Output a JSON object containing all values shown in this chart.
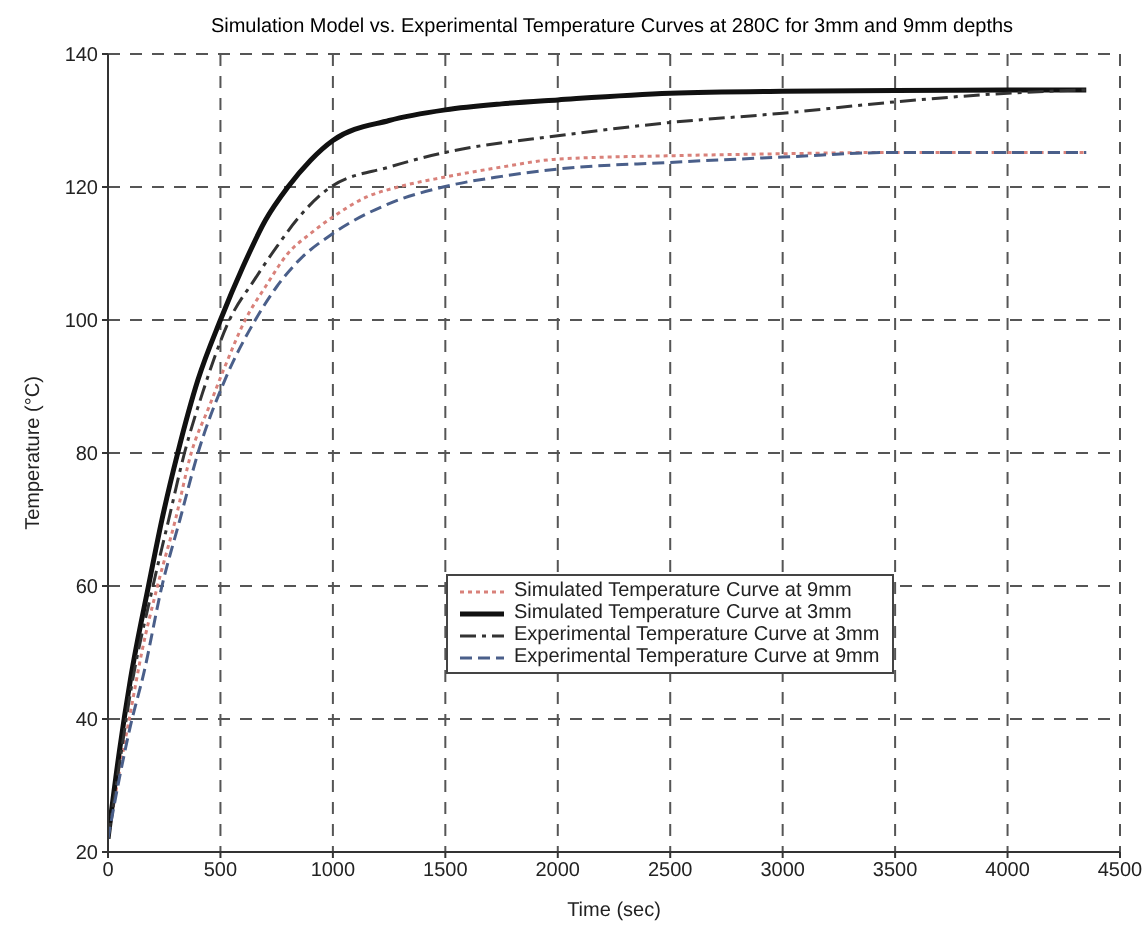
{
  "chart_data": {
    "type": "line",
    "title": "Simulation Model vs. Experimental Temperature Curves at 280C for 3mm and 9mm depths",
    "xlabel": "Time (sec)",
    "ylabel": "Temperature (°C)",
    "xlim": [
      0,
      4500
    ],
    "ylim": [
      20,
      140
    ],
    "xticks": [
      0,
      500,
      1000,
      1500,
      2000,
      2500,
      3000,
      3500,
      4000,
      4500
    ],
    "yticks": [
      20,
      40,
      60,
      80,
      100,
      120,
      140
    ],
    "grid": true,
    "legend": "center",
    "marker": "none",
    "series": [
      {
        "name": "Simulated Temperature Curve at 9mm",
        "color": "#d9817a",
        "line_style": "dotted",
        "x": [
          0,
          50,
          100,
          150,
          220,
          300,
          370,
          450,
          520,
          610,
          700,
          800,
          900,
          1000,
          1150,
          1290,
          1500,
          1750,
          2000,
          2500,
          3000,
          3500,
          4000,
          4350
        ],
        "values": [
          22,
          32,
          41,
          50,
          60,
          70,
          80,
          87,
          93,
          100,
          105,
          110,
          113,
          115.5,
          118.5,
          120,
          121.5,
          123,
          124.2,
          124.7,
          125,
          125.2,
          125.2,
          125.2
        ]
      },
      {
        "name": "Simulated Temperature Curve at 3mm",
        "color": "#111111",
        "line_style": "solid",
        "x": [
          0,
          50,
          100,
          180,
          240,
          310,
          400,
          500,
          600,
          700,
          800,
          900,
          1000,
          1250,
          1500,
          1750,
          2000,
          2500,
          3000,
          3500,
          4000,
          4350
        ],
        "values": [
          22,
          35,
          46,
          60,
          70,
          80,
          91,
          100,
          108,
          115,
          120,
          124,
          127,
          130,
          131.6,
          132.5,
          133.1,
          134.1,
          134.4,
          134.5,
          134.6,
          134.6
        ]
      },
      {
        "name": "Experimental Temperature Curve at 3mm",
        "color": "#333333",
        "line_style": "dashdot",
        "x": [
          0,
          50,
          100,
          200,
          270,
          340,
          420,
          540,
          650,
          750,
          850,
          990,
          1250,
          1500,
          2000,
          2500,
          3000,
          3500,
          4000,
          4350
        ],
        "values": [
          22,
          33,
          44,
          60,
          70,
          80,
          89,
          100,
          106,
          111,
          115.5,
          120,
          123,
          125.2,
          127.7,
          129.7,
          131.1,
          132.8,
          134.1,
          134.6
        ]
      },
      {
        "name": "Experimental Temperature Curve at 9mm",
        "color": "#4a5f8a",
        "line_style": "dashed",
        "x": [
          0,
          50,
          100,
          160,
          240,
          320,
          400,
          520,
          655,
          750,
          850,
          1000,
          1250,
          1490,
          1750,
          2000,
          2500,
          3000,
          3500,
          4000,
          4350
        ],
        "values": [
          22,
          31,
          39,
          47,
          60,
          70,
          80,
          91,
          100,
          105,
          109,
          113,
          117.5,
          120,
          121.6,
          122.7,
          123.7,
          124.5,
          125.2,
          125.2,
          125.2
        ]
      }
    ]
  }
}
